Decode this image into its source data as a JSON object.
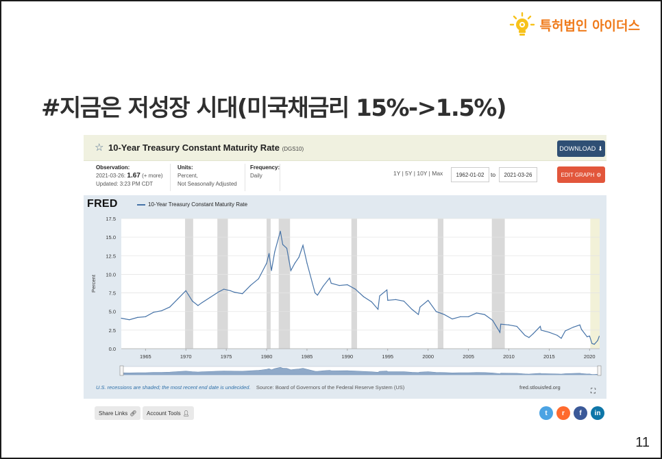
{
  "slide": {
    "brand_name": "특허법인 아이더스",
    "title": "#지금은 저성장 시대(미국채금리 15%->1.5%)",
    "page_number": "11",
    "brand_color": "#ef7a1a"
  },
  "fred": {
    "series_title": "10-Year Treasury Constant Maturity Rate",
    "series_id": "(DGS10)",
    "download_label": "DOWNLOAD",
    "observation": {
      "label": "Observation:",
      "date": "2021-03-26:",
      "value": "1.67",
      "more": "(+ more)",
      "updated": "Updated: 3:23 PM CDT"
    },
    "units": {
      "label": "Units:",
      "line1": "Percent,",
      "line2": "Not Seasonally Adjusted"
    },
    "frequency": {
      "label": "Frequency:",
      "value": "Daily"
    },
    "range_links": "1Y | 5Y | 10Y | Max",
    "start_date": "1962-01-02",
    "to_label": "to",
    "end_date": "2021-03-26",
    "edit_label": "EDIT GRAPH",
    "logo": "FRED",
    "legend": "10-Year Treasury Constant Maturity Rate",
    "recession_note": "U.S. recessions are shaded; the most recent end date is undecided.",
    "source": "Source: Board of Governors of the Federal Reserve System (US)",
    "site": "fred.stlouisfed.org",
    "share_links_label": "Share Links",
    "account_tools_label": "Account Tools",
    "social_icons": [
      "twitter-icon",
      "reddit-icon",
      "facebook-icon",
      "linkedin-icon"
    ],
    "colors": {
      "line": "#4572a7",
      "recession": "#d9d9d9",
      "header_bg": "#f0f1e0",
      "download": "#2f4f74",
      "edit": "#e2563b"
    }
  },
  "chart_data": {
    "type": "line",
    "title": "10-Year Treasury Constant Maturity Rate",
    "ylabel": "Percent",
    "xlabel": "",
    "xlim": [
      1962,
      2021.25
    ],
    "ylim": [
      0,
      17.5
    ],
    "yticks": [
      "0.0",
      "2.5",
      "5.0",
      "7.5",
      "10.0",
      "12.5",
      "15.0",
      "17.5"
    ],
    "xticks": [
      "1965",
      "1970",
      "1975",
      "1980",
      "1985",
      "1990",
      "1995",
      "2000",
      "2005",
      "2010",
      "2015",
      "2020"
    ],
    "recessions": [
      [
        1969.9,
        1970.9
      ],
      [
        1973.9,
        1975.2
      ],
      [
        1980.0,
        1980.5
      ],
      [
        1981.5,
        1982.9
      ],
      [
        1990.5,
        1991.2
      ],
      [
        2001.2,
        2001.9
      ],
      [
        2007.9,
        2009.5
      ],
      [
        2020.1,
        2020.4
      ]
    ],
    "grid": true,
    "legend": "top-left",
    "series": [
      {
        "name": "10-Year Treasury Constant Maturity Rate",
        "x": [
          1962,
          1963,
          1964,
          1965,
          1966,
          1967,
          1968,
          1969,
          1970,
          1970.8,
          1971.5,
          1972,
          1973,
          1974,
          1974.7,
          1975.5,
          1976,
          1977,
          1978,
          1979,
          1980,
          1980.3,
          1980.6,
          1981,
          1981.7,
          1982,
          1982.5,
          1983,
          1983.5,
          1984,
          1984.5,
          1985,
          1986,
          1986.3,
          1987,
          1987.8,
          1988,
          1989,
          1990,
          1991,
          1992,
          1993,
          1993.8,
          1994,
          1994.9,
          1995,
          1996,
          1997,
          1998,
          1998.8,
          1999,
          2000,
          2001,
          2002,
          2003,
          2004,
          2005,
          2006,
          2007,
          2008,
          2008.9,
          2009,
          2010,
          2011,
          2012,
          2012.5,
          2013,
          2013.9,
          2014,
          2015,
          2016,
          2016.5,
          2017,
          2018,
          2018.8,
          2019,
          2019.7,
          2020,
          2020.3,
          2020.6,
          2021,
          2021.2
        ],
        "y": [
          4.1,
          3.9,
          4.2,
          4.3,
          4.9,
          5.1,
          5.6,
          6.7,
          7.8,
          6.4,
          5.8,
          6.2,
          6.9,
          7.6,
          8.0,
          7.8,
          7.6,
          7.4,
          8.5,
          9.4,
          11.5,
          12.8,
          10.5,
          13.0,
          15.8,
          14.0,
          13.5,
          10.5,
          11.5,
          12.3,
          13.9,
          11.5,
          7.5,
          7.2,
          8.4,
          9.5,
          8.8,
          8.5,
          8.6,
          8.0,
          7.0,
          6.3,
          5.3,
          7.1,
          7.9,
          6.5,
          6.6,
          6.4,
          5.3,
          4.6,
          5.6,
          6.5,
          5.0,
          4.6,
          4.0,
          4.3,
          4.3,
          4.8,
          4.6,
          3.8,
          2.2,
          3.3,
          3.2,
          3.0,
          1.8,
          1.5,
          2.0,
          3.0,
          2.5,
          2.2,
          1.8,
          1.4,
          2.4,
          2.9,
          3.2,
          2.6,
          1.6,
          1.7,
          0.7,
          0.6,
          1.1,
          1.67
        ]
      }
    ]
  }
}
